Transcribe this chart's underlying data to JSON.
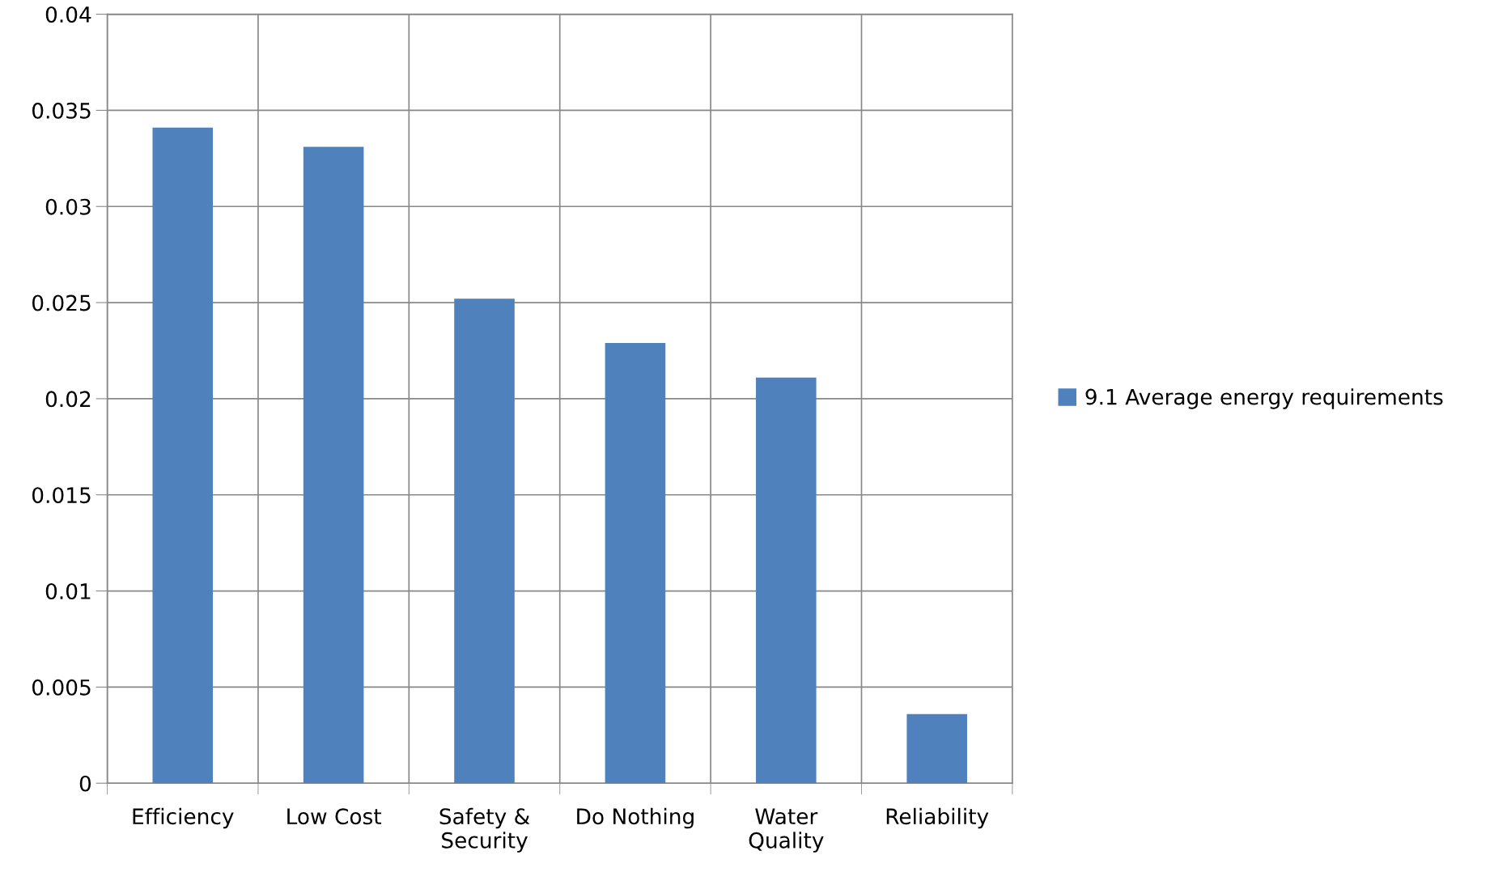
{
  "chart_data": {
    "type": "bar",
    "categories": [
      "Efficiency",
      "Low Cost",
      "Safety & Security",
      "Do Nothing",
      "Water Quality",
      "Reliability"
    ],
    "series": [
      {
        "name": "9.1 Average energy requirements",
        "color": "#4f81bd",
        "values": [
          0.0341,
          0.0331,
          0.0252,
          0.0229,
          0.0211,
          0.0036
        ]
      }
    ],
    "ylim": [
      0,
      0.04
    ],
    "yticks": [
      {
        "value": 0,
        "label": "0"
      },
      0.005,
      0.01,
      0.015,
      0.02,
      0.025,
      0.03,
      0.035,
      0.04
    ],
    "grid": true,
    "legend": "right"
  }
}
